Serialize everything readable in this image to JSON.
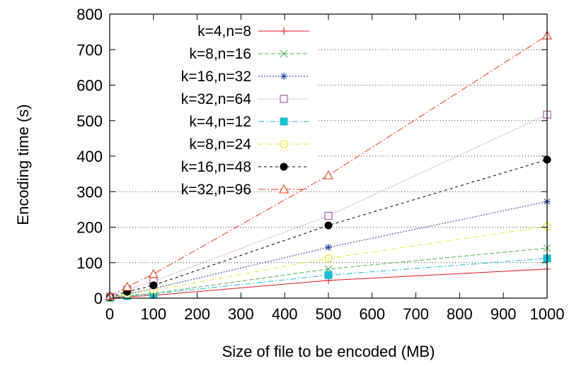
{
  "chart_data": {
    "type": "line",
    "xlabel": "Size of file to be encoded (MB)",
    "ylabel": "Encoding time (s)",
    "xlim": [
      0,
      1000
    ],
    "ylim": [
      0,
      800
    ],
    "xticks": [
      0,
      100,
      200,
      300,
      400,
      500,
      600,
      700,
      800,
      900,
      1000
    ],
    "yticks": [
      0,
      100,
      200,
      300,
      400,
      500,
      600,
      700,
      800
    ],
    "grid": "horizontal-dotted",
    "legend_position": "top-left",
    "x": [
      1,
      40,
      100,
      500,
      1000
    ],
    "series": [
      {
        "name": "k=4,n=8",
        "color": "#e41a1c",
        "marker": "plus",
        "dash": "",
        "values": [
          0.5,
          4,
          8,
          50,
          82
        ]
      },
      {
        "name": "k=8,n=16",
        "color": "#4daf4a",
        "marker": "x",
        "dash": "6,3",
        "values": [
          1,
          7,
          14,
          82,
          141
        ]
      },
      {
        "name": "k=16,n=32",
        "color": "#1f3f99",
        "marker": "star",
        "dash": "2,2",
        "values": [
          2,
          12,
          27,
          143,
          272
        ]
      },
      {
        "name": "k=32,n=64",
        "color": "#a64ca6",
        "marker": "open-square",
        "dash": "1,2",
        "values": [
          4,
          24,
          48,
          232,
          517
        ]
      },
      {
        "name": "k=4,n=12",
        "color": "#17becf",
        "marker": "filled-square",
        "dash": "8,3,2,3",
        "values": [
          1,
          6,
          12,
          65,
          112
        ]
      },
      {
        "name": "k=8,n=24",
        "color": "#e5e517",
        "marker": "open-circle",
        "dash": "6,3,1,3",
        "values": [
          2,
          11,
          22,
          112,
          202
        ]
      },
      {
        "name": "k=16,n=48",
        "color": "#000000",
        "marker": "filled-circle",
        "dash": "4,4",
        "values": [
          3,
          18,
          36,
          205,
          390
        ]
      },
      {
        "name": "k=32,n=96",
        "color": "#e9411a",
        "marker": "open-triangle",
        "dash": "10,3,2,3",
        "values": [
          6,
          32,
          68,
          346,
          740
        ]
      }
    ]
  }
}
